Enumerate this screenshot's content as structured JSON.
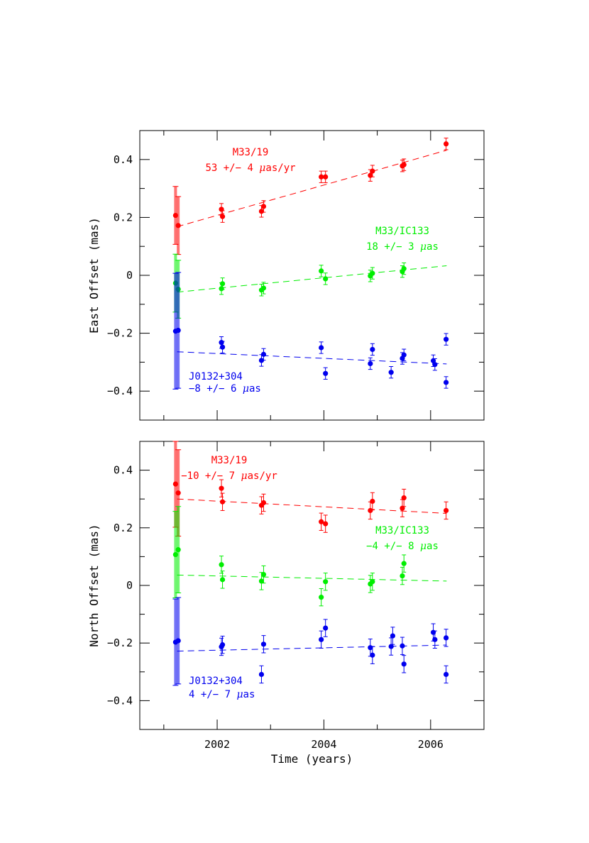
{
  "chart_data": [
    {
      "type": "scatter",
      "panel": "east",
      "xlabel": "",
      "ylabel": "East Offset (mas)",
      "xlim": [
        2000.55,
        2007.0
      ],
      "ylim": [
        -0.5,
        0.5
      ],
      "xticks": [
        2002,
        2004,
        2006
      ],
      "yticks": [
        -0.4,
        -0.2,
        0,
        0.2,
        0.4
      ],
      "ytick_labels": [
        "−0.4",
        "−0.2",
        "0",
        "0.2",
        "0.4"
      ],
      "grid": false,
      "series": [
        {
          "color": "#ff0000",
          "label_lines": [
            "M33/19",
            "53 +/− 4 μas/yr"
          ],
          "fit": [
            [
              2001.25,
              0.168
            ],
            [
              2006.3,
              0.432
            ]
          ],
          "points": [
            {
              "x": 2001.22,
              "y": 0.207,
              "err": 0.1
            },
            {
              "x": 2001.27,
              "y": 0.172,
              "err": 0.1
            },
            {
              "x": 2002.08,
              "y": 0.228,
              "err": 0.02
            },
            {
              "x": 2002.1,
              "y": 0.203,
              "err": 0.02
            },
            {
              "x": 2002.83,
              "y": 0.221,
              "err": 0.02
            },
            {
              "x": 2002.87,
              "y": 0.238,
              "err": 0.02
            },
            {
              "x": 2003.95,
              "y": 0.34,
              "err": 0.02
            },
            {
              "x": 2004.03,
              "y": 0.34,
              "err": 0.02
            },
            {
              "x": 2004.87,
              "y": 0.345,
              "err": 0.02
            },
            {
              "x": 2004.91,
              "y": 0.36,
              "err": 0.02
            },
            {
              "x": 2005.47,
              "y": 0.378,
              "err": 0.02
            },
            {
              "x": 2005.5,
              "y": 0.382,
              "err": 0.02
            },
            {
              "x": 2006.29,
              "y": 0.454,
              "err": 0.02
            }
          ]
        },
        {
          "color": "#00ee00",
          "label_lines": [
            "M33/IC133",
            "18 +/− 3 μas"
          ],
          "fit": [
            [
              2001.25,
              -0.058
            ],
            [
              2006.3,
              0.033
            ]
          ],
          "points": [
            {
              "x": 2001.22,
              "y": -0.027,
              "err": 0.1
            },
            {
              "x": 2001.27,
              "y": -0.048,
              "err": 0.1
            },
            {
              "x": 2002.08,
              "y": -0.046,
              "err": 0.02
            },
            {
              "x": 2002.1,
              "y": -0.029,
              "err": 0.02
            },
            {
              "x": 2002.83,
              "y": -0.051,
              "err": 0.02
            },
            {
              "x": 2002.87,
              "y": -0.044,
              "err": 0.02
            },
            {
              "x": 2003.95,
              "y": 0.015,
              "err": 0.02
            },
            {
              "x": 2004.03,
              "y": -0.012,
              "err": 0.02
            },
            {
              "x": 2004.87,
              "y": -0.002,
              "err": 0.02
            },
            {
              "x": 2004.91,
              "y": 0.007,
              "err": 0.02
            },
            {
              "x": 2005.47,
              "y": 0.013,
              "err": 0.02
            },
            {
              "x": 2005.5,
              "y": 0.023,
              "err": 0.02
            }
          ]
        },
        {
          "color": "#0000ee",
          "label_lines": [
            "J0132+304",
            "−8 +/− 6 μas"
          ],
          "fit": [
            [
              2001.25,
              -0.264
            ],
            [
              2006.3,
              -0.306
            ]
          ],
          "points": [
            {
              "x": 2001.22,
              "y": -0.193,
              "err": 0.2
            },
            {
              "x": 2001.27,
              "y": -0.19,
              "err": 0.2
            },
            {
              "x": 2002.08,
              "y": -0.232,
              "err": 0.02
            },
            {
              "x": 2002.1,
              "y": -0.248,
              "err": 0.02
            },
            {
              "x": 2002.83,
              "y": -0.294,
              "err": 0.02
            },
            {
              "x": 2002.87,
              "y": -0.273,
              "err": 0.02
            },
            {
              "x": 2003.95,
              "y": -0.25,
              "err": 0.02
            },
            {
              "x": 2004.03,
              "y": -0.339,
              "err": 0.02
            },
            {
              "x": 2004.87,
              "y": -0.305,
              "err": 0.02
            },
            {
              "x": 2004.91,
              "y": -0.256,
              "err": 0.02
            },
            {
              "x": 2005.26,
              "y": -0.335,
              "err": 0.02
            },
            {
              "x": 2005.47,
              "y": -0.287,
              "err": 0.02
            },
            {
              "x": 2005.5,
              "y": -0.275,
              "err": 0.02
            },
            {
              "x": 2006.05,
              "y": -0.295,
              "err": 0.02
            },
            {
              "x": 2006.08,
              "y": -0.308,
              "err": 0.02
            },
            {
              "x": 2006.29,
              "y": -0.221,
              "err": 0.02
            },
            {
              "x": 2006.29,
              "y": -0.37,
              "err": 0.02
            }
          ]
        }
      ]
    },
    {
      "type": "scatter",
      "panel": "north",
      "xlabel": "Time (years)",
      "ylabel": "North Offset (mas)",
      "xlim": [
        2000.55,
        2007.0
      ],
      "ylim": [
        -0.5,
        0.5
      ],
      "xticks": [
        2002,
        2004,
        2006
      ],
      "xtick_labels": [
        "2002",
        "2004",
        "2006"
      ],
      "yticks": [
        -0.4,
        -0.2,
        0,
        0.2,
        0.4
      ],
      "ytick_labels": [
        "−0.4",
        "−0.2",
        "0",
        "0.2",
        "0.4"
      ],
      "grid": false,
      "series": [
        {
          "color": "#ff0000",
          "label_lines": [
            "M33/19",
            "−10 +/− 7 μas/yr"
          ],
          "fit": [
            [
              2001.25,
              0.3
            ],
            [
              2006.3,
              0.25
            ]
          ],
          "points": [
            {
              "x": 2001.22,
              "y": 0.352,
              "err": 0.15
            },
            {
              "x": 2001.27,
              "y": 0.321,
              "err": 0.15
            },
            {
              "x": 2002.08,
              "y": 0.337,
              "err": 0.03
            },
            {
              "x": 2002.1,
              "y": 0.29,
              "err": 0.03
            },
            {
              "x": 2002.83,
              "y": 0.278,
              "err": 0.03
            },
            {
              "x": 2002.87,
              "y": 0.287,
              "err": 0.03
            },
            {
              "x": 2003.95,
              "y": 0.221,
              "err": 0.03
            },
            {
              "x": 2004.03,
              "y": 0.214,
              "err": 0.03
            },
            {
              "x": 2004.87,
              "y": 0.26,
              "err": 0.03
            },
            {
              "x": 2004.91,
              "y": 0.292,
              "err": 0.03
            },
            {
              "x": 2005.47,
              "y": 0.268,
              "err": 0.03
            },
            {
              "x": 2005.5,
              "y": 0.304,
              "err": 0.03
            },
            {
              "x": 2006.29,
              "y": 0.26,
              "err": 0.03
            }
          ]
        },
        {
          "color": "#00ee00",
          "label_lines": [
            "M33/IC133",
            "−4 +/− 8 μas"
          ],
          "fit": [
            [
              2001.25,
              0.036
            ],
            [
              2006.3,
              0.015
            ]
          ],
          "points": [
            {
              "x": 2001.22,
              "y": 0.107,
              "err": 0.15
            },
            {
              "x": 2001.27,
              "y": 0.124,
              "err": 0.15
            },
            {
              "x": 2002.08,
              "y": 0.072,
              "err": 0.03
            },
            {
              "x": 2002.1,
              "y": 0.02,
              "err": 0.03
            },
            {
              "x": 2002.83,
              "y": 0.015,
              "err": 0.03
            },
            {
              "x": 2002.87,
              "y": 0.038,
              "err": 0.03
            },
            {
              "x": 2003.95,
              "y": -0.041,
              "err": 0.03
            },
            {
              "x": 2004.03,
              "y": 0.013,
              "err": 0.03
            },
            {
              "x": 2004.87,
              "y": 0.005,
              "err": 0.03
            },
            {
              "x": 2004.91,
              "y": 0.013,
              "err": 0.03
            },
            {
              "x": 2005.47,
              "y": 0.033,
              "err": 0.03
            },
            {
              "x": 2005.5,
              "y": 0.076,
              "err": 0.03
            }
          ]
        },
        {
          "color": "#0000ee",
          "label_lines": [
            "J0132+304",
            "4 +/− 7 μas"
          ],
          "fit": [
            [
              2001.25,
              -0.228
            ],
            [
              2006.3,
              -0.207
            ]
          ],
          "points": [
            {
              "x": 2001.22,
              "y": -0.197,
              "err": 0.15
            },
            {
              "x": 2001.27,
              "y": -0.192,
              "err": 0.15
            },
            {
              "x": 2002.08,
              "y": -0.213,
              "err": 0.03
            },
            {
              "x": 2002.1,
              "y": -0.206,
              "err": 0.03
            },
            {
              "x": 2002.83,
              "y": -0.309,
              "err": 0.03
            },
            {
              "x": 2002.87,
              "y": -0.204,
              "err": 0.03
            },
            {
              "x": 2003.95,
              "y": -0.188,
              "err": 0.03
            },
            {
              "x": 2004.03,
              "y": -0.148,
              "err": 0.03
            },
            {
              "x": 2004.87,
              "y": -0.216,
              "err": 0.03
            },
            {
              "x": 2004.91,
              "y": -0.242,
              "err": 0.03
            },
            {
              "x": 2005.26,
              "y": -0.212,
              "err": 0.03
            },
            {
              "x": 2005.29,
              "y": -0.175,
              "err": 0.03
            },
            {
              "x": 2005.47,
              "y": -0.21,
              "err": 0.03
            },
            {
              "x": 2005.5,
              "y": -0.273,
              "err": 0.03
            },
            {
              "x": 2006.05,
              "y": -0.163,
              "err": 0.03
            },
            {
              "x": 2006.08,
              "y": -0.188,
              "err": 0.03
            },
            {
              "x": 2006.29,
              "y": -0.182,
              "err": 0.03
            },
            {
              "x": 2006.29,
              "y": -0.309,
              "err": 0.03
            }
          ]
        }
      ]
    }
  ]
}
